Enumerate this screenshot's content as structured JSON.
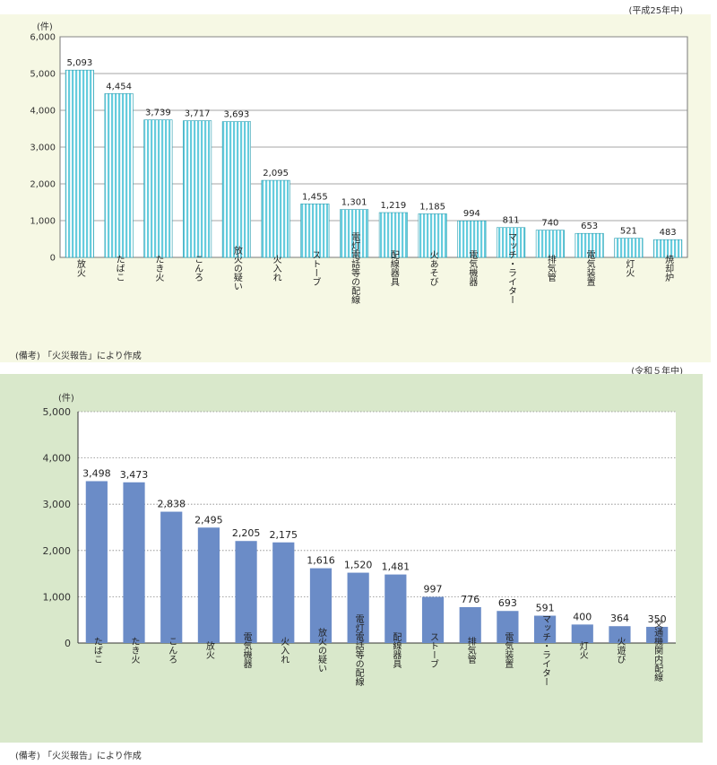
{
  "chart_data": [
    {
      "type": "bar",
      "period": "(平成25年中)",
      "unit": "(件)",
      "note": "(備考) 「火災報告」により作成",
      "yticks": [
        "0",
        "1,000",
        "2,000",
        "3,000",
        "4,000",
        "5,000",
        "6,000"
      ],
      "ylim": [
        0,
        6000
      ],
      "bar_color": "#66ccdd",
      "categories": [
        "放火",
        "たばこ",
        "たき火",
        "こんろ",
        "放火の疑い",
        "火入れ",
        "ストーブ",
        "電灯電話等の配線",
        "配線器具",
        "火あそび",
        "電気機器",
        "マッチ・ライター",
        "排気管",
        "電気装置",
        "灯火",
        "焼却炉"
      ],
      "values": [
        5093,
        4454,
        3739,
        3717,
        3693,
        2095,
        1455,
        1301,
        1219,
        1185,
        994,
        811,
        740,
        653,
        521,
        483
      ],
      "value_labels": [
        "5,093",
        "4,454",
        "3,739",
        "3,717",
        "3,693",
        "2,095",
        "1,455",
        "1,301",
        "1,219",
        "1,185",
        "994",
        "811",
        "740",
        "653",
        "521",
        "483"
      ]
    },
    {
      "type": "bar",
      "period": "(令和５年中)",
      "unit": "(件)",
      "note": "(備考) 「火災報告」により作成",
      "yticks": [
        "0",
        "1,000",
        "2,000",
        "3,000",
        "4,000",
        "5,000"
      ],
      "ylim": [
        0,
        5000
      ],
      "bar_color": "#6b8cc7",
      "categories": [
        "たばこ",
        "たき火",
        "こんろ",
        "放火",
        "電気機器",
        "火入れ",
        "放火の疑い",
        "電灯電話等の配線",
        "配線器具",
        "ストーブ",
        "排気管",
        "電気装置",
        "マッチ・ライター",
        "灯火",
        "火遊び",
        "交通機関内配線"
      ],
      "values": [
        3498,
        3473,
        2838,
        2495,
        2205,
        2175,
        1616,
        1520,
        1481,
        997,
        776,
        693,
        591,
        400,
        364,
        350
      ],
      "value_labels": [
        "3,498",
        "3,473",
        "2,838",
        "2,495",
        "2,205",
        "2,175",
        "1,616",
        "1,520",
        "1,481",
        "997",
        "776",
        "693",
        "591",
        "400",
        "364",
        "350"
      ]
    }
  ]
}
